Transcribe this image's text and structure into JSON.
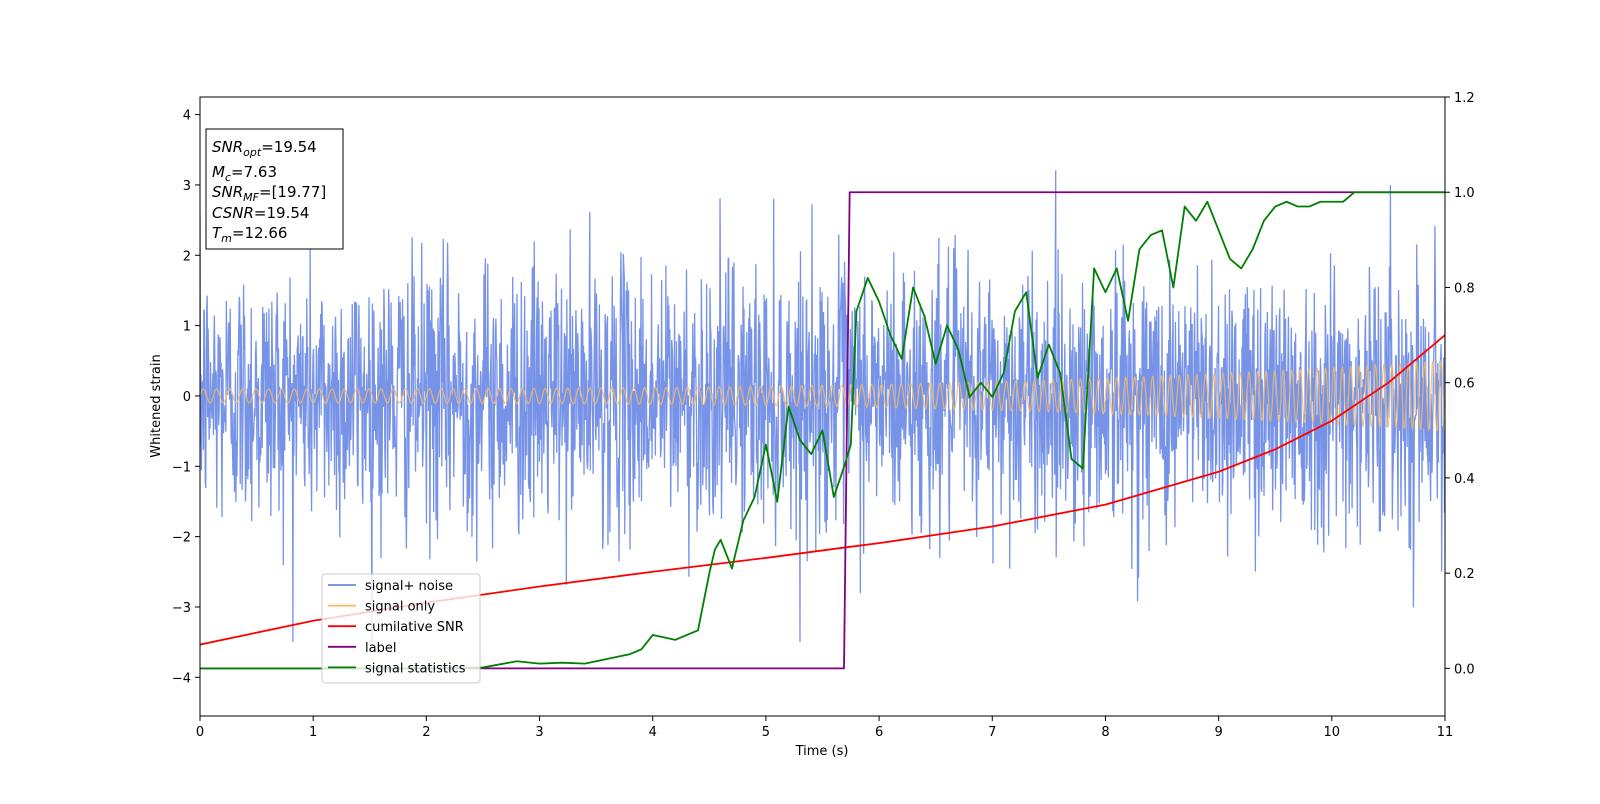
{
  "chart_data": {
    "type": "line",
    "xlabel": "Time (s)",
    "ylabel": "Whitened strain",
    "ylabel_right": "",
    "xlim": [
      0,
      11
    ],
    "ylim": [
      -4.55,
      4.25
    ],
    "ylim_right": [
      -0.1,
      1.2
    ],
    "x_ticks": [
      "0",
      "1",
      "2",
      "3",
      "4",
      "5",
      "6",
      "7",
      "8",
      "9",
      "10",
      "11"
    ],
    "y_ticks": [
      "-4",
      "-3",
      "-2",
      "-1",
      "0",
      "1",
      "2",
      "3",
      "4"
    ],
    "y_ticks_right": [
      "0.0",
      "0.2",
      "0.4",
      "0.6",
      "0.8",
      "1.0",
      "1.2"
    ],
    "legend_placement": "lower-left",
    "info_box": {
      "lines": [
        {
          "sym": "SNR",
          "sub": "opt",
          "val": "=19.54"
        },
        {
          "sym": "M",
          "sub": "c",
          "val": "=7.63"
        },
        {
          "sym": "SNR",
          "sub": "MF",
          "val": "=[19.77]"
        },
        {
          "sym": "CSNR",
          "sub": "",
          "val": "=19.54"
        },
        {
          "sym": "T",
          "sub": "m",
          "val": "=12.66"
        }
      ]
    },
    "series": [
      {
        "name": "signal+ noise",
        "color": "#6b8ae6",
        "axis": "left",
        "kind": "noise",
        "envelope": 1.7,
        "peak": 3.5
      },
      {
        "name": "signal only",
        "color": "#f5b866",
        "axis": "left",
        "kind": "chirp",
        "amp_start": 0.1,
        "amp_end": 0.5
      },
      {
        "name": "cumilative SNR",
        "color": "#ff0000",
        "axis": "right",
        "x": [
          0,
          1,
          2,
          3,
          4,
          5,
          5.7,
          6,
          7,
          8,
          9,
          9.5,
          10,
          10.5,
          11
        ],
        "y": [
          0.05,
          0.1,
          0.138,
          0.172,
          0.203,
          0.232,
          0.254,
          0.263,
          0.298,
          0.344,
          0.413,
          0.46,
          0.52,
          0.6,
          0.7
        ]
      },
      {
        "name": "label",
        "color": "#800080",
        "axis": "right",
        "x": [
          0,
          5.69,
          5.74,
          11
        ],
        "y": [
          0,
          0,
          1,
          1
        ]
      },
      {
        "name": "signal statistics",
        "color": "#008000",
        "axis": "right",
        "x": [
          0,
          0.5,
          1,
          1.5,
          2,
          2.5,
          2.8,
          3,
          3.2,
          3.4,
          3.6,
          3.8,
          3.9,
          4,
          4.1,
          4.2,
          4.3,
          4.4,
          4.5,
          4.55,
          4.6,
          4.7,
          4.8,
          4.9,
          5,
          5.1,
          5.2,
          5.3,
          5.4,
          5.5,
          5.6,
          5.7,
          5.75,
          5.8,
          5.9,
          6,
          6.1,
          6.2,
          6.3,
          6.4,
          6.5,
          6.6,
          6.7,
          6.8,
          6.9,
          7,
          7.1,
          7.2,
          7.3,
          7.4,
          7.5,
          7.6,
          7.7,
          7.8,
          7.9,
          8,
          8.1,
          8.2,
          8.3,
          8.4,
          8.5,
          8.6,
          8.7,
          8.8,
          8.9,
          9,
          9.1,
          9.2,
          9.3,
          9.4,
          9.5,
          9.6,
          9.7,
          9.8,
          9.9,
          10,
          10.1,
          10.2,
          10.3,
          10.4,
          10.6,
          11
        ],
        "y": [
          0,
          0,
          0,
          0,
          0,
          0.002,
          0.015,
          0.01,
          0.012,
          0.01,
          0.02,
          0.03,
          0.04,
          0.07,
          0.065,
          0.06,
          0.07,
          0.08,
          0.2,
          0.25,
          0.27,
          0.21,
          0.31,
          0.36,
          0.47,
          0.35,
          0.55,
          0.48,
          0.45,
          0.5,
          0.36,
          0.43,
          0.47,
          0.75,
          0.82,
          0.77,
          0.7,
          0.65,
          0.8,
          0.74,
          0.64,
          0.72,
          0.67,
          0.57,
          0.6,
          0.57,
          0.62,
          0.75,
          0.79,
          0.61,
          0.68,
          0.62,
          0.44,
          0.42,
          0.84,
          0.79,
          0.84,
          0.73,
          0.88,
          0.91,
          0.92,
          0.8,
          0.97,
          0.94,
          0.98,
          0.92,
          0.86,
          0.84,
          0.88,
          0.94,
          0.97,
          0.98,
          0.97,
          0.97,
          0.98,
          0.98,
          0.98,
          1.0,
          1.0,
          1.0,
          1.0,
          1.0
        ]
      }
    ]
  }
}
